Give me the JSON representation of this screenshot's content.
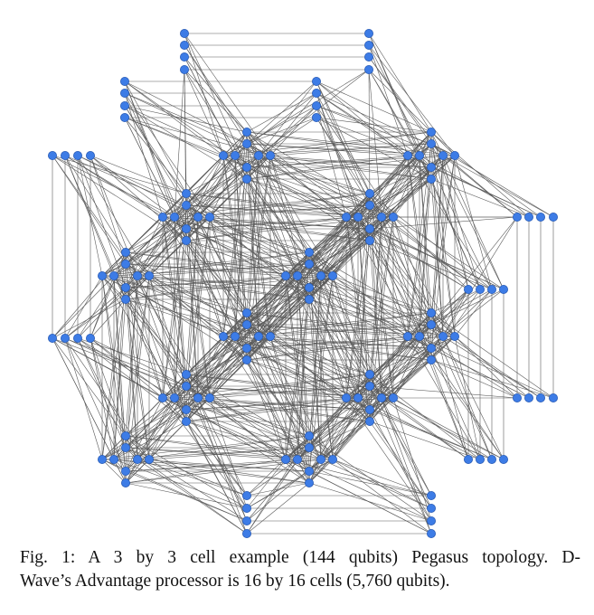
{
  "figure": {
    "caption": {
      "lines": [
        "Fig. 1: A 3 by 3 cell example (144 qubits) Pegasus topology. D-",
        "Wave’s Advantage processor is 16 by 16 cells (5,760 qubits)."
      ]
    }
  }
}
